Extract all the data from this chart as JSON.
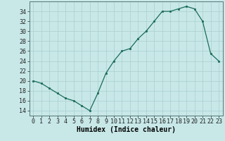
{
  "x": [
    0,
    1,
    2,
    3,
    4,
    5,
    6,
    7,
    8,
    9,
    10,
    11,
    12,
    13,
    14,
    15,
    16,
    17,
    18,
    19,
    20,
    21,
    22,
    23
  ],
  "y": [
    20,
    19.5,
    18.5,
    17.5,
    16.5,
    16,
    15,
    14,
    17.5,
    21.5,
    24,
    26,
    26.5,
    28.5,
    30,
    32,
    34,
    34,
    34.5,
    35,
    34.5,
    32,
    25.5,
    24
  ],
  "xlabel": "Humidex (Indice chaleur)",
  "ylabel": "",
  "xlim": [
    -0.5,
    23.5
  ],
  "ylim": [
    13,
    36
  ],
  "yticks": [
    14,
    16,
    18,
    20,
    22,
    24,
    26,
    28,
    30,
    32,
    34
  ],
  "xticks": [
    0,
    1,
    2,
    3,
    4,
    5,
    6,
    7,
    8,
    9,
    10,
    11,
    12,
    13,
    14,
    15,
    16,
    17,
    18,
    19,
    20,
    21,
    22,
    23
  ],
  "line_color": "#1a6b5a",
  "marker_color": "#1a6b5a",
  "bg_color": "#c8e8e8",
  "grid_color": "#aacece",
  "label_fontsize": 7.0,
  "tick_fontsize": 6.0
}
